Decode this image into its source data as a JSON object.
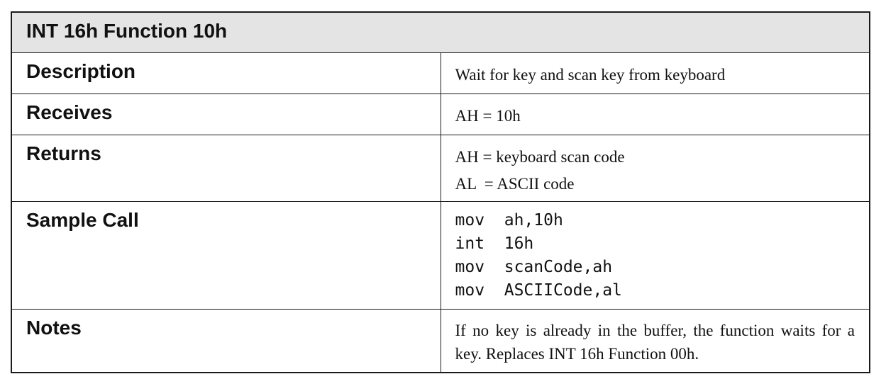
{
  "title": "INT 16h Function 10h",
  "rows": {
    "description": {
      "label": "Description",
      "value": "Wait for key and scan key from keyboard"
    },
    "receives": {
      "label": "Receives",
      "value": "AH = 10h"
    },
    "returns": {
      "label": "Returns",
      "lines": [
        "AH = keyboard scan code",
        "AL  = ASCII code"
      ]
    },
    "sample_call": {
      "label": "Sample Call",
      "code": [
        "mov  ah,10h",
        "int  16h",
        "mov  scanCode,ah",
        "mov  ASCIICode,al"
      ]
    },
    "notes": {
      "label": "Notes",
      "value": "If no key is already in the buffer, the function waits for a key. Replaces INT 16h Function 00h."
    }
  }
}
